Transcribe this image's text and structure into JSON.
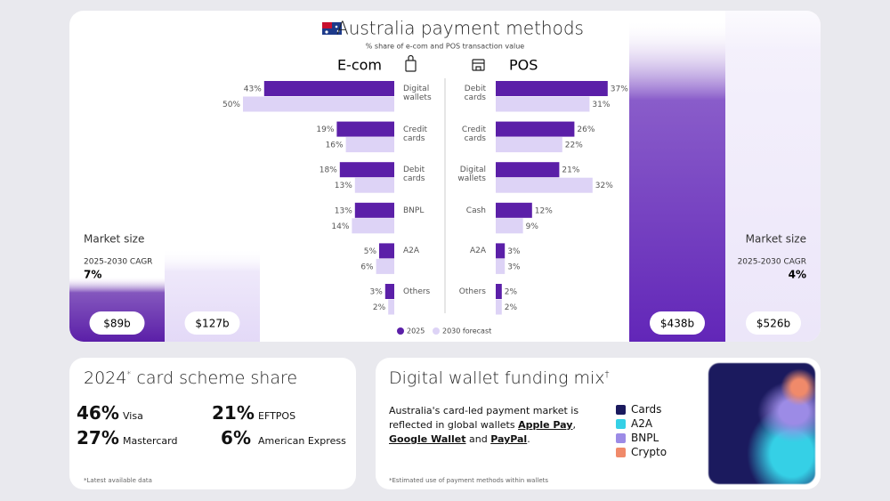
{
  "header": {
    "title": "Australia payment methods",
    "subtitle": "% share of e-com and POS transaction value"
  },
  "chart_data": [
    {
      "type": "hbar",
      "title": "E-com",
      "categories": [
        "Digital wallets",
        "Credit cards",
        "Debit cards",
        "BNPL",
        "A2A",
        "Others"
      ],
      "series": [
        {
          "name": "2025",
          "color": "#5b1fa8",
          "values": [
            43,
            19,
            18,
            13,
            5,
            3
          ],
          "value_labels": [
            "43%",
            "19%",
            "18%",
            "13%",
            "5%",
            "3%"
          ]
        },
        {
          "name": "2030 forecast",
          "color": "#ddd3f6",
          "values": [
            50,
            16,
            13,
            14,
            6,
            2
          ],
          "value_labels": [
            "50%",
            "16%",
            "13%",
            "14%",
            "6%",
            "2%"
          ]
        }
      ]
    },
    {
      "type": "hbar",
      "title": "POS",
      "categories": [
        "Debit cards",
        "Credit cards",
        "Digital wallets",
        "Cash",
        "A2A",
        "Others"
      ],
      "series": [
        {
          "color": "#5b1fa8",
          "values": [
            37,
            26,
            21,
            12,
            3,
            2
          ],
          "value_labels": [
            "37%",
            "26%",
            "21%",
            "12%",
            "3%",
            "2%"
          ]
        },
        {
          "color": "#ddd3f6",
          "values": [
            31,
            22,
            32,
            9,
            3,
            2
          ],
          "value_labels": [
            "31%",
            "22%",
            "32%",
            "9%",
            "3%",
            "2%"
          ]
        }
      ]
    },
    {
      "type": "bar",
      "title": "Market size",
      "subtitle": "2025-2030 CAGR",
      "annotation": "7%",
      "categories": [
        null,
        null
      ],
      "values": [
        89,
        127
      ],
      "value_labels": [
        "$89b",
        "$127b"
      ],
      "colors": [
        "#5b1fa8",
        "#e3d9f7"
      ],
      "ylim": [
        0,
        450
      ]
    },
    {
      "type": "bar",
      "title": "Market size",
      "subtitle": "2025-2030 CAGR",
      "annotation": "4%",
      "categories": [
        null,
        null
      ],
      "values": [
        438,
        526
      ],
      "value_labels": [
        "$438b",
        "$526b"
      ],
      "colors": [
        "#6226b8",
        "#ece6f9"
      ],
      "ylim": [
        0,
        450
      ]
    }
  ],
  "card_share": {
    "title": "2024",
    "title_mark": "*",
    "title_rest": " card scheme share",
    "items": [
      {
        "share": "46%",
        "name": "Visa"
      },
      {
        "share": "21%",
        "name": "EFTPOS"
      },
      {
        "share": "27%",
        "name": "Mastercard"
      },
      {
        "share": "6%",
        "name": "American Express"
      }
    ],
    "footnote": "*Latest available data"
  },
  "wallet_mix": {
    "title": "Digital wallet funding mix",
    "title_mark": "†",
    "text": [
      "Australia's card-led payment market is reflected in global wallets ",
      "Apple Pay",
      ", ",
      "Google Wallet",
      " and ",
      "PayPal",
      "."
    ],
    "legend": [
      {
        "name": "Cards",
        "color": "#1b1a5e"
      },
      {
        "name": "A2A",
        "color": "#35d0e6"
      },
      {
        "name": "BNPL",
        "color": "#9c8be6"
      },
      {
        "name": "Crypto",
        "color": "#f08a6a"
      }
    ],
    "footnote": "*Estimated use of payment methods within wallets"
  }
}
